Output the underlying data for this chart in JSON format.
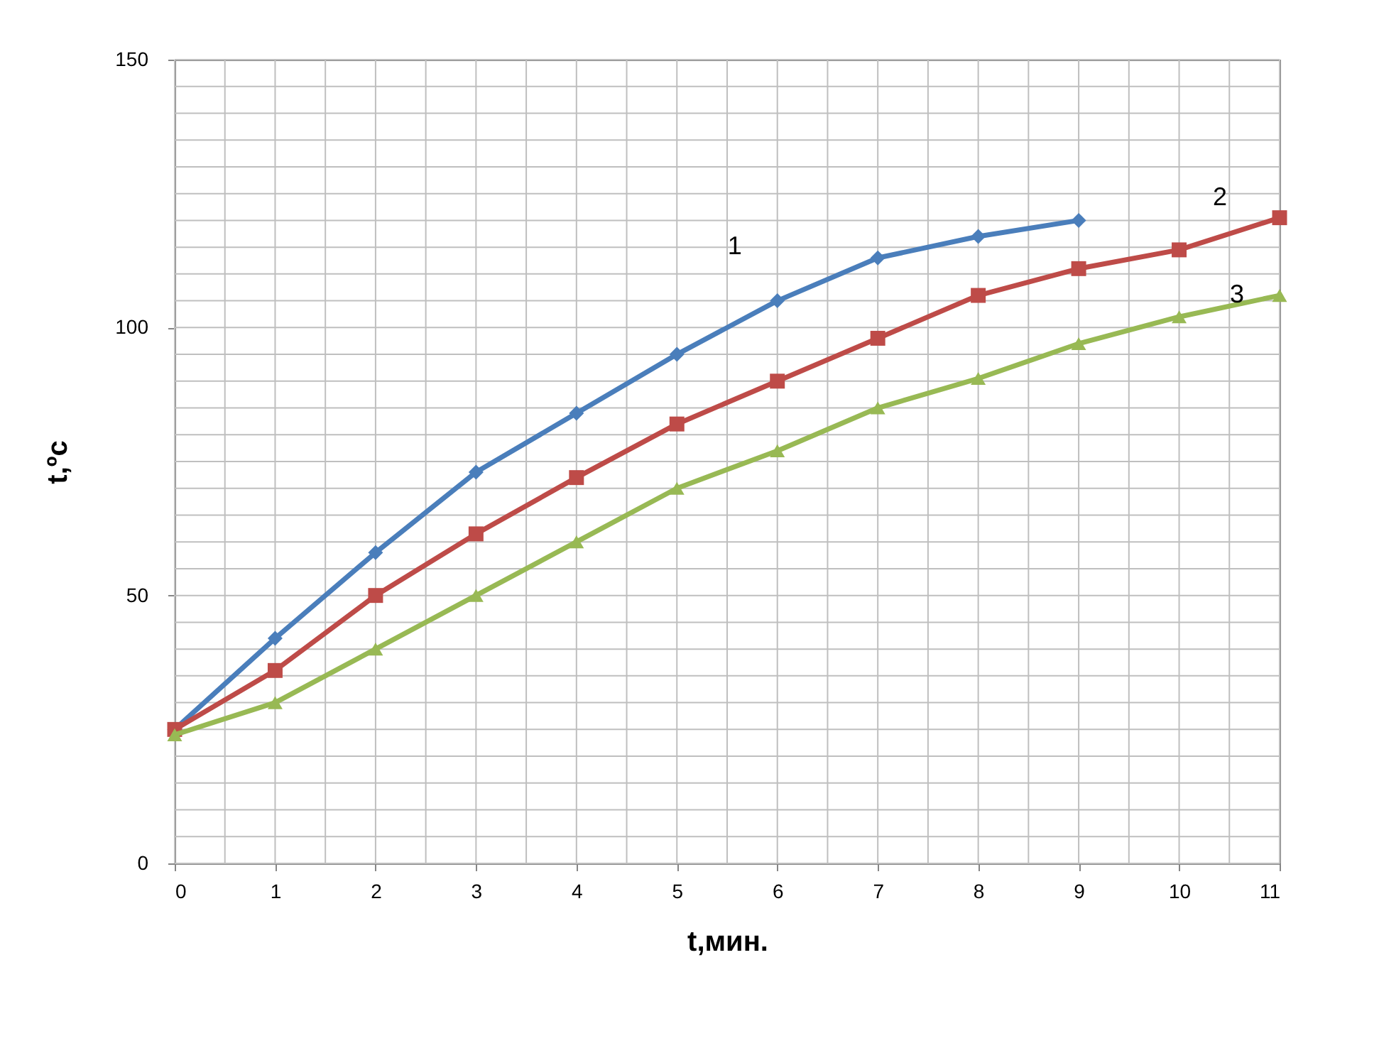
{
  "chart_data": {
    "type": "line",
    "xlabel": "t,мин.",
    "ylabel": "t,ºc",
    "x": [
      0,
      1,
      2,
      3,
      4,
      5,
      6,
      7,
      8,
      9,
      10,
      11
    ],
    "series": [
      {
        "name": "1",
        "color": "#4a7ebb",
        "marker": "diamond",
        "x": [
          0,
          1,
          2,
          3,
          4,
          5,
          6,
          7,
          8,
          9
        ],
        "values": [
          25,
          42,
          58,
          73,
          84,
          95,
          105,
          113,
          117,
          120
        ]
      },
      {
        "name": "2",
        "color": "#be4b48",
        "marker": "square",
        "values": [
          25,
          36,
          50,
          61.5,
          72,
          82,
          90,
          98,
          106,
          111,
          114.5,
          120.5
        ]
      },
      {
        "name": "3",
        "color": "#98b954",
        "marker": "triangle",
        "values": [
          24,
          30,
          40,
          50,
          60,
          70,
          77,
          85,
          90.5,
          97,
          102,
          106
        ]
      }
    ],
    "xlim": [
      0,
      11
    ],
    "xticks": [
      0,
      {
        "value": 0.5,
        "label": null
      },
      1,
      {
        "value": 1.5,
        "label": null
      },
      2,
      {
        "value": 2.5,
        "label": null
      },
      3,
      {
        "value": 3.5,
        "label": null
      },
      4,
      {
        "value": 4.5,
        "label": null
      },
      5,
      {
        "value": 5.5,
        "label": null
      },
      6,
      {
        "value": 6.5,
        "label": null
      },
      7,
      {
        "value": 7.5,
        "label": null
      },
      8,
      {
        "value": 8.5,
        "label": null
      },
      9,
      {
        "value": 9.5,
        "label": null
      },
      10,
      {
        "value": 10.5,
        "label": null
      },
      11
    ],
    "ylim": [
      0,
      150
    ],
    "yticks": [
      0,
      {
        "value": 5,
        "label": null
      },
      {
        "value": 10,
        "label": null
      },
      {
        "value": 15,
        "label": null
      },
      {
        "value": 20,
        "label": null
      },
      {
        "value": 25,
        "label": null
      },
      {
        "value": 30,
        "label": null
      },
      {
        "value": 35,
        "label": null
      },
      {
        "value": 40,
        "label": null
      },
      {
        "value": 45,
        "label": null
      },
      50,
      {
        "value": 55,
        "label": null
      },
      {
        "value": 60,
        "label": null
      },
      {
        "value": 65,
        "label": null
      },
      {
        "value": 70,
        "label": null
      },
      {
        "value": 75,
        "label": null
      },
      {
        "value": 80,
        "label": null
      },
      {
        "value": 85,
        "label": null
      },
      {
        "value": 90,
        "label": null
      },
      {
        "value": 95,
        "label": null
      },
      100,
      {
        "value": 105,
        "label": null
      },
      {
        "value": 110,
        "label": null
      },
      {
        "value": 115,
        "label": null
      },
      {
        "value": 120,
        "label": null
      },
      {
        "value": 125,
        "label": null
      },
      {
        "value": 130,
        "label": null
      },
      {
        "value": 135,
        "label": null
      },
      {
        "value": 140,
        "label": null
      },
      {
        "value": 145,
        "label": null
      },
      150
    ],
    "grid": true,
    "line_style": "solid"
  }
}
